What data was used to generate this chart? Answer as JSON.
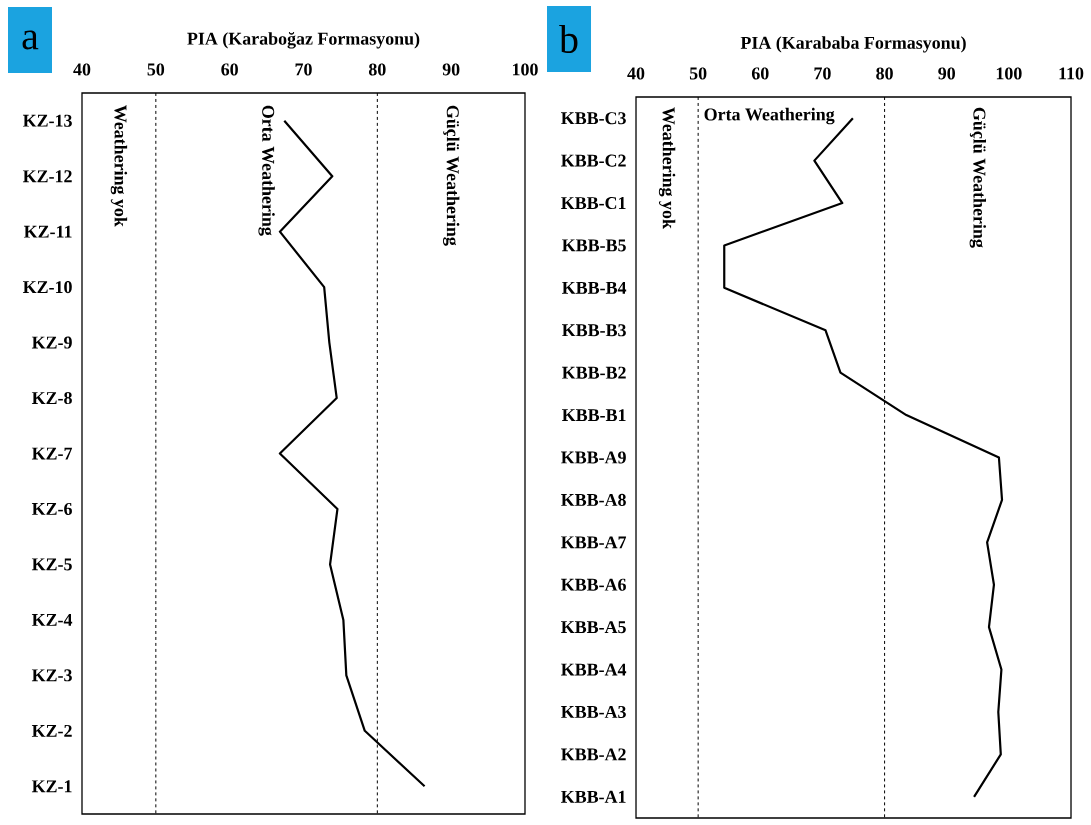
{
  "chart_data": [
    {
      "type": "line",
      "title": "a",
      "xlabel": "PIA (Karaboğaz Formasyonu)",
      "orientation": "horizontal",
      "line_style": "solid",
      "categories": [
        "KZ-13",
        "KZ-12",
        "KZ-11",
        "KZ-10",
        "KZ-9",
        "KZ-8",
        "KZ-7",
        "KZ-6",
        "KZ-5",
        "KZ-4",
        "KZ-3",
        "KZ-2",
        "KZ-1"
      ],
      "series": [
        {
          "color": "#000000",
          "values": [
            67.4,
            73.9,
            66.8,
            72.8,
            73.5,
            74.5,
            66.8,
            74.6,
            73.6,
            75.4,
            75.8,
            78.3,
            86.4
          ]
        }
      ],
      "xlim": [
        40,
        100
      ],
      "xticks": [
        40,
        50,
        60,
        70,
        80,
        90,
        100
      ],
      "ref_lines": [
        {
          "axis": "x",
          "value": 50,
          "color": "#000000",
          "line_style": "dashed"
        },
        {
          "axis": "x",
          "value": 80,
          "color": "#000000",
          "line_style": "dashed"
        }
      ],
      "annotations": [
        "Weathering yok",
        "Orta Weathering",
        "Güçlü Weathering"
      ]
    },
    {
      "type": "line",
      "title": "b",
      "xlabel": "PIA (Karababa Formasyonu)",
      "orientation": "horizontal",
      "line_style": "solid",
      "categories": [
        "KBB-C3",
        "KBB-C2",
        "KBB-C1",
        "KBB-B5",
        "KBB-B4",
        "KBB-B3",
        "KBB-B2",
        "KBB-B1",
        "KBB-A9",
        "KBB-A8",
        "KBB-A7",
        "KBB-A6",
        "KBB-A5",
        "KBB-A4",
        "KBB-A3",
        "KBB-A2",
        "KBB-A1"
      ],
      "series": [
        {
          "color": "#000000",
          "values": [
            74.9,
            68.7,
            73.2,
            54.2,
            54.2,
            70.5,
            72.9,
            83.5,
            98.4,
            98.9,
            96.5,
            97.6,
            96.8,
            98.8,
            98.3,
            98.7,
            94.4
          ]
        }
      ],
      "xlim": [
        40,
        110
      ],
      "xticks": [
        40,
        50,
        60,
        70,
        80,
        90,
        100,
        110
      ],
      "ref_lines": [
        {
          "axis": "x",
          "value": 50,
          "color": "#000000",
          "line_style": "dashed"
        },
        {
          "axis": "x",
          "value": 80,
          "color": "#000000",
          "line_style": "dashed"
        }
      ],
      "annotations": [
        "Weathering yok",
        "Orta Weathering",
        "Güçlü Weathering"
      ]
    }
  ]
}
